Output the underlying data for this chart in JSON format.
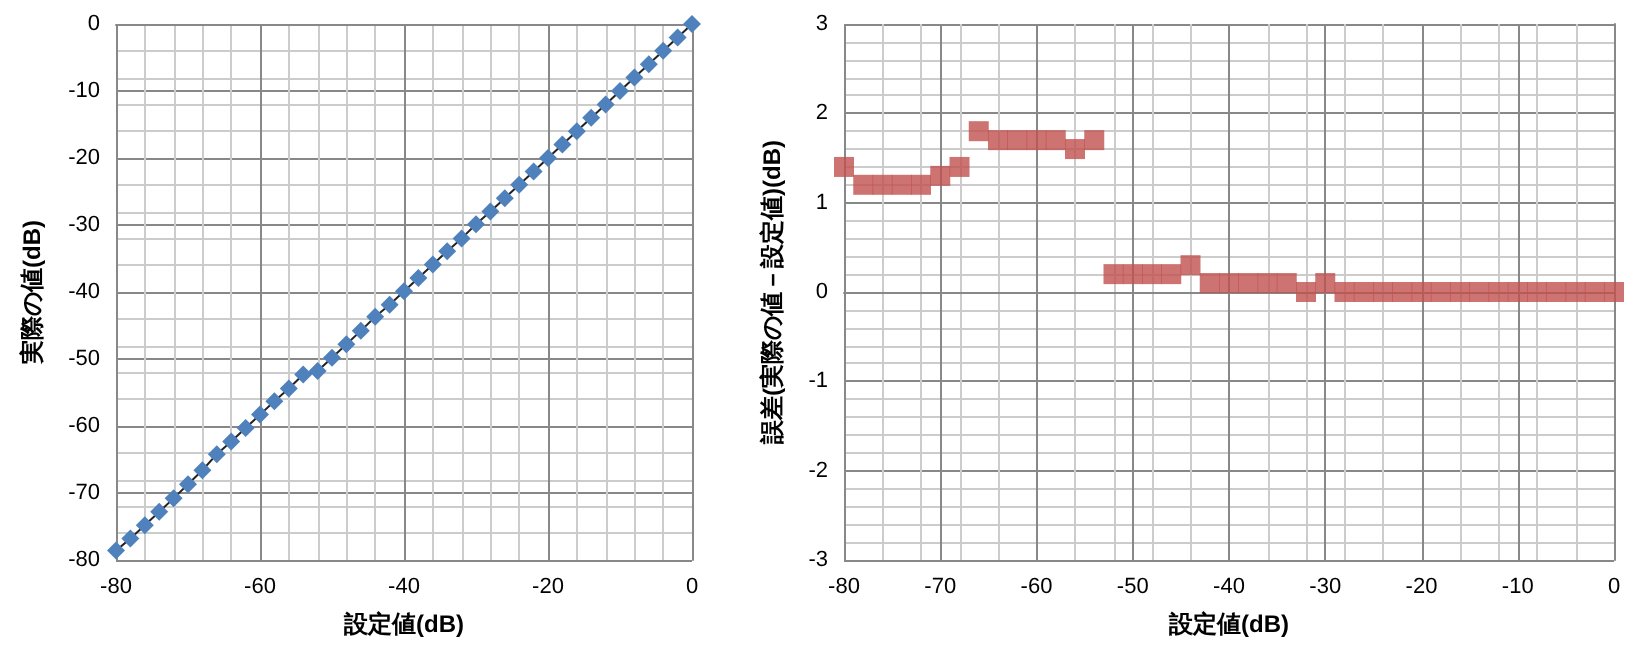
{
  "chart_data": [
    {
      "type": "line",
      "xlabel": "設定値(dB)",
      "ylabel": "実際の値(dB)",
      "xlim": [
        -80,
        0
      ],
      "xticks": [
        -80,
        -60,
        -40,
        -20,
        0
      ],
      "ylim": [
        -80,
        0
      ],
      "yticks": [
        -80,
        -70,
        -60,
        -50,
        -40,
        -30,
        -20,
        -10,
        0
      ],
      "grid": true,
      "marker": "diamond",
      "line_style": "solid",
      "x": [
        -80,
        -78,
        -76,
        -74,
        -72,
        -70,
        -68,
        -66,
        -64,
        -62,
        -60,
        -58,
        -56,
        -54,
        -52,
        -50,
        -48,
        -46,
        -44,
        -42,
        -40,
        -38,
        -36,
        -34,
        -32,
        -30,
        -28,
        -26,
        -24,
        -22,
        -20,
        -18,
        -16,
        -14,
        -12,
        -10,
        -8,
        -6,
        -4,
        -2,
        0
      ],
      "series": [
        {
          "color": "#4f81bd",
          "values": [
            -78.6,
            -76.8,
            -74.8,
            -72.8,
            -70.8,
            -68.7,
            -66.6,
            -64.2,
            -62.3,
            -60.3,
            -58.3,
            -56.3,
            -54.4,
            -52.3,
            -51.8,
            -49.8,
            -47.8,
            -45.8,
            -43.7,
            -41.9,
            -39.9,
            -37.9,
            -35.9,
            -33.9,
            -32,
            -29.9,
            -28,
            -26,
            -24,
            -22,
            -20,
            -18,
            -16,
            -14,
            -12,
            -10,
            -8,
            -6,
            -4,
            -2,
            0
          ]
        }
      ]
    },
    {
      "type": "scatter",
      "xlabel": "設定値(dB)",
      "ylabel": "誤差(実際の値－設定値)(dB)",
      "xlim": [
        -80,
        0
      ],
      "xticks": [
        -80,
        -70,
        -60,
        -50,
        -40,
        -30,
        -20,
        -10,
        0
      ],
      "ylim": [
        -3,
        3
      ],
      "yticks": [
        -3,
        -2,
        -1,
        0,
        1,
        2,
        3
      ],
      "grid": true,
      "marker": "square",
      "x": [
        -80,
        -78,
        -76,
        -74,
        -72,
        -70,
        -68,
        -66,
        -64,
        -62,
        -60,
        -58,
        -56,
        -54,
        -52,
        -50,
        -48,
        -46,
        -44,
        -42,
        -40,
        -38,
        -36,
        -34,
        -32,
        -30,
        -28,
        -26,
        -24,
        -22,
        -20,
        -18,
        -16,
        -14,
        -12,
        -10,
        -8,
        -6,
        -4,
        -2,
        0
      ],
      "series": [
        {
          "color": "#c0504d",
          "values": [
            1.4,
            1.2,
            1.2,
            1.2,
            1.2,
            1.3,
            1.4,
            1.8,
            1.7,
            1.7,
            1.7,
            1.7,
            1.6,
            1.7,
            0.2,
            0.2,
            0.2,
            0.2,
            0.3,
            0.1,
            0.1,
            0.1,
            0.1,
            0.1,
            0,
            0.1,
            0,
            0,
            0,
            0,
            0,
            0,
            0,
            0,
            0,
            0,
            0,
            0,
            0,
            0,
            0
          ]
        }
      ]
    }
  ]
}
